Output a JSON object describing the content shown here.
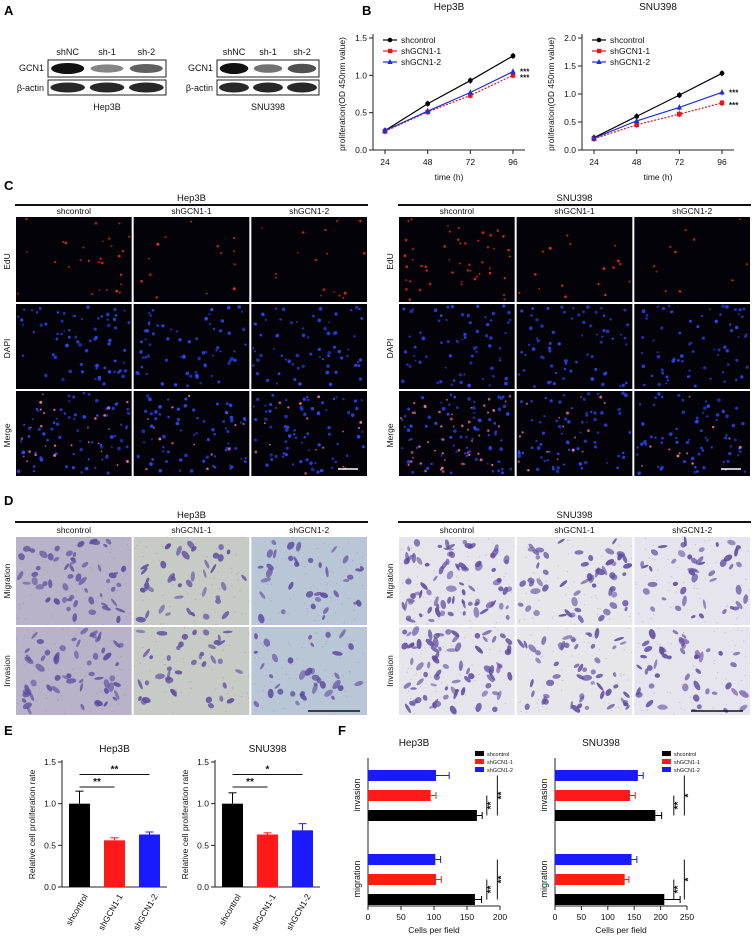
{
  "panel_letters": {
    "A": "A",
    "B": "B",
    "C": "C",
    "D": "D",
    "E": "E",
    "F": "F"
  },
  "panelA": {
    "blots": [
      {
        "cell": "Hep3B",
        "lanes": [
          "shNC",
          "sh-1",
          "sh-2"
        ],
        "rows": [
          "GCN1",
          "β-actin"
        ],
        "band_intensity": [
          1.0,
          0.35,
          0.55
        ]
      },
      {
        "cell": "SNU398",
        "lanes": [
          "shNC",
          "sh-1",
          "sh-2"
        ],
        "rows": [
          "GCN1",
          "β-actin"
        ],
        "band_intensity": [
          1.0,
          0.45,
          0.65
        ]
      }
    ]
  },
  "panelC": {
    "groups": [
      {
        "cell": "Hep3B",
        "cols": [
          "shcontrol",
          "shGCN1-1",
          "shGCN1-2"
        ],
        "edu_density": [
          0.5,
          0.25,
          0.3
        ]
      },
      {
        "cell": "SNU398",
        "cols": [
          "shcontrol",
          "shGCN1-1",
          "shGCN1-2"
        ],
        "edu_density": [
          0.9,
          0.3,
          0.2
        ]
      }
    ],
    "rows": [
      "EdU",
      "DAPI",
      "Merge"
    ]
  },
  "panelD": {
    "groups": [
      {
        "cell": "Hep3B",
        "cols": [
          "shcontrol",
          "shGCN1-1",
          "shGCN1-2"
        ]
      },
      {
        "cell": "SNU398",
        "cols": [
          "shcontrol",
          "shGCN1-1",
          "shGCN1-2"
        ]
      }
    ],
    "rows": [
      "Migration",
      "Invasion"
    ]
  },
  "chart_data": [
    {
      "type": "line",
      "title": "Hep3B",
      "xlabel": "time (h)",
      "ylabel": "proliferation(OD 450nm value)",
      "x": [
        24,
        48,
        72,
        96
      ],
      "ylim": [
        0,
        1.5
      ],
      "yticks": [
        0,
        0.5,
        1.0,
        1.5
      ],
      "yticklabels": [
        "0.0",
        "0.5",
        "1.0",
        "1.5"
      ],
      "series": [
        {
          "name": "shcontrol",
          "values": [
            0.26,
            0.62,
            0.93,
            1.26
          ],
          "color": "#000000",
          "marker": "circle"
        },
        {
          "name": "shGCN1-1",
          "values": [
            0.25,
            0.51,
            0.73,
            1.0
          ],
          "color": "#e8141b",
          "marker": "square"
        },
        {
          "name": "shGCN1-2",
          "values": [
            0.26,
            0.52,
            0.77,
            1.05
          ],
          "color": "#1f2fd6",
          "marker": "triangle"
        }
      ],
      "annotations": [
        "***",
        "***"
      ],
      "legend": "top-left"
    },
    {
      "type": "line",
      "title": "SNU398",
      "xlabel": "time (h)",
      "ylabel": "proliferation(OD 450nm value)",
      "x": [
        24,
        48,
        72,
        96
      ],
      "ylim": [
        0,
        2.0
      ],
      "yticks": [
        0,
        0.5,
        1.0,
        1.5,
        2.0
      ],
      "yticklabels": [
        "0.0",
        "0.5",
        "1.0",
        "1.5",
        "2.0"
      ],
      "series": [
        {
          "name": "shcontrol",
          "values": [
            0.22,
            0.6,
            0.98,
            1.37
          ],
          "color": "#000000",
          "marker": "circle"
        },
        {
          "name": "shGCN1-1",
          "values": [
            0.2,
            0.45,
            0.64,
            0.84
          ],
          "color": "#e8141b",
          "marker": "square"
        },
        {
          "name": "shGCN1-2",
          "values": [
            0.21,
            0.52,
            0.76,
            1.03
          ],
          "color": "#1f2fd6",
          "marker": "triangle"
        }
      ],
      "annotations": [
        "***",
        "***"
      ],
      "legend": "top-left"
    },
    {
      "type": "bar",
      "title": "Hep3B",
      "ylabel": "Relative cell proliferation rate",
      "categories": [
        "shcontrol",
        "shGCN1-1",
        "shGCN1-2"
      ],
      "values": [
        1.0,
        0.56,
        0.63
      ],
      "errors": [
        0.15,
        0.03,
        0.03
      ],
      "colors": [
        "#000000",
        "#ff1a1a",
        "#1a1aff"
      ],
      "ylim": [
        0,
        1.5
      ],
      "yticks": [
        0,
        0.5,
        1.0,
        1.5
      ],
      "yticklabels": [
        "0.0",
        "0.5",
        "1.0",
        "1.5"
      ],
      "significance": [
        "**",
        "**"
      ]
    },
    {
      "type": "bar",
      "title": "SNU398",
      "ylabel": "Relative cell proliferation rate",
      "categories": [
        "shcontrol",
        "shGCN1-1",
        "shGCN1-2"
      ],
      "values": [
        1.0,
        0.63,
        0.68
      ],
      "errors": [
        0.13,
        0.02,
        0.08
      ],
      "colors": [
        "#000000",
        "#ff1a1a",
        "#1a1aff"
      ],
      "ylim": [
        0,
        1.5
      ],
      "yticks": [
        0,
        0.5,
        1.0,
        1.5
      ],
      "yticklabels": [
        "0.0",
        "0.5",
        "1.0",
        "1.5"
      ],
      "significance": [
        "**",
        "*"
      ]
    },
    {
      "type": "bar",
      "orientation": "horizontal",
      "title": "Hep3B",
      "xlabel": "Cells per field",
      "groups": [
        "invasion",
        "migration"
      ],
      "series": [
        {
          "name": "shcontrol",
          "color": "#000000",
          "values": [
            165,
            162
          ],
          "errors": [
            8,
            10
          ]
        },
        {
          "name": "shGCN1-1",
          "color": "#ff1a1a",
          "values": [
            95,
            103
          ],
          "errors": [
            8,
            8
          ]
        },
        {
          "name": "shGCN1-2",
          "color": "#1a1aff",
          "values": [
            103,
            102
          ],
          "errors": [
            20,
            8
          ]
        }
      ],
      "xlim": [
        0,
        200
      ],
      "xticks": [
        0,
        50,
        100,
        150,
        200
      ],
      "significance": [
        [
          "**",
          "**"
        ],
        [
          "**",
          "**"
        ]
      ],
      "legend": "top-right"
    },
    {
      "type": "bar",
      "orientation": "horizontal",
      "title": "SNU398",
      "xlabel": "Cells per field",
      "groups": [
        "invasion",
        "migration"
      ],
      "series": [
        {
          "name": "shcontrol",
          "color": "#000000",
          "values": [
            190,
            207
          ],
          "errors": [
            12,
            30
          ]
        },
        {
          "name": "shGCN1-1",
          "color": "#ff1a1a",
          "values": [
            142,
            132
          ],
          "errors": [
            10,
            8
          ]
        },
        {
          "name": "shGCN1-2",
          "color": "#1a1aff",
          "values": [
            157,
            145
          ],
          "errors": [
            10,
            10
          ]
        }
      ],
      "xlim": [
        0,
        250
      ],
      "xticks": [
        0,
        50,
        100,
        150,
        200,
        250
      ],
      "significance": [
        [
          "**",
          "*"
        ],
        [
          "**",
          "*"
        ]
      ],
      "legend": "top-right"
    }
  ]
}
